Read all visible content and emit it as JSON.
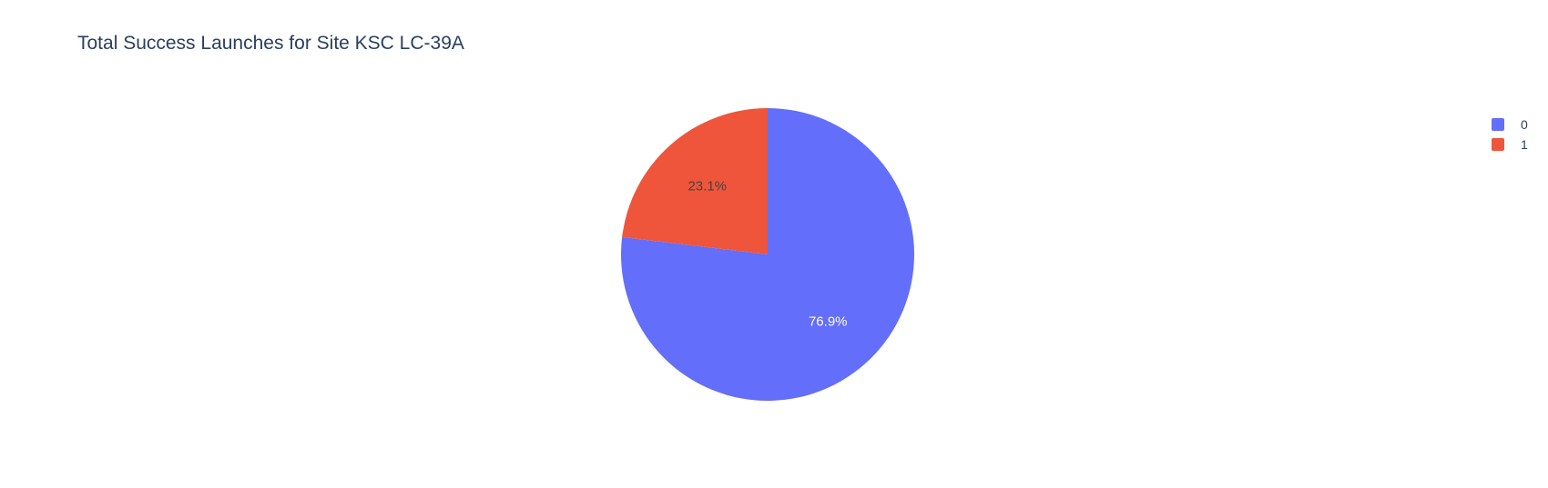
{
  "chart_data": {
    "type": "pie",
    "title": "Total Success Launches for Site KSC LC-39A",
    "slices": [
      {
        "label": "0",
        "value": 76.9,
        "text": "76.9%",
        "color": "#636efa",
        "text_color": "#ffffff"
      },
      {
        "label": "1",
        "value": 23.1,
        "text": "23.1%",
        "color": "#ef553b",
        "text_color": "#444444"
      }
    ],
    "legend": {
      "placement": "top-right",
      "entries": [
        {
          "label": "0",
          "color": "#636efa"
        },
        {
          "label": "1",
          "color": "#ef553b"
        }
      ]
    }
  }
}
